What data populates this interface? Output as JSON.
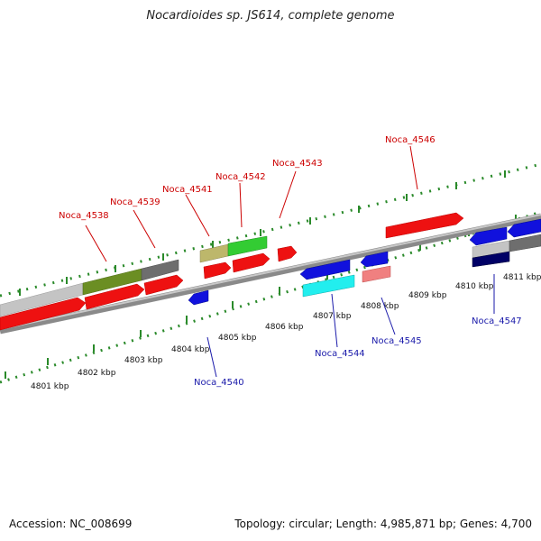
{
  "header": {
    "title": "Nocardioides sp. JS614, complete genome"
  },
  "footer": {
    "accession": "Accession: NC_008699",
    "summary": "Topology: circular; Length: 4,985,871 bp; Genes: 4,700"
  },
  "scale": {
    "labels": [
      "4801 kbp",
      "4802 kbp",
      "4803 kbp",
      "4804 kbp",
      "4805 kbp",
      "4806 kbp",
      "4807 kbp",
      "4808 kbp",
      "4809 kbp",
      "4810 kbp",
      "4811 kbp"
    ]
  },
  "colors": {
    "cds": "#ee1111",
    "cds_rev": "#1111dd",
    "backbone": "#8a8a8a",
    "ticks": "#2a8a2a",
    "label_fwd": "#cc0000",
    "label_rev": "#1a1aaa"
  },
  "features": {
    "forward_labels": [
      "Noca_4538",
      "Noca_4539",
      "Noca_4541",
      "Noca_4542",
      "Noca_4543",
      "Noca_4546"
    ],
    "reverse_labels": [
      "Noca_4540",
      "Noca_4544",
      "Noca_4545",
      "Noca_4547"
    ]
  }
}
